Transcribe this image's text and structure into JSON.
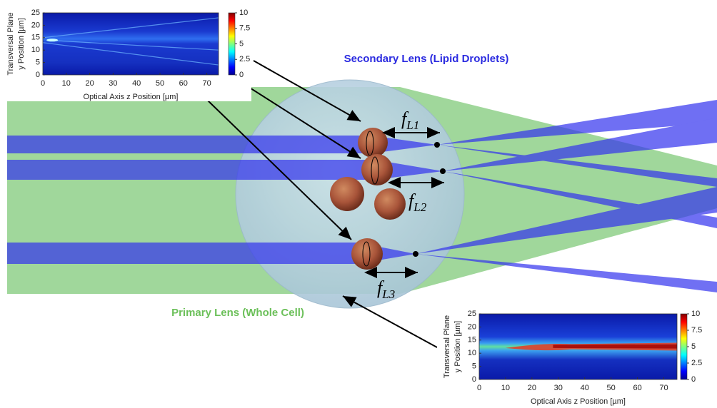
{
  "titles": {
    "secondary_lens": "Secondary Lens (Lipid Droplets)",
    "primary_lens": "Primary Lens (Whole Cell)"
  },
  "focal_labels": [
    {
      "symbol": "f",
      "subscript": "L1"
    },
    {
      "symbol": "f",
      "subscript": "L2"
    },
    {
      "symbol": "f",
      "subscript": "L3"
    }
  ],
  "insets": [
    {
      "x_label": "Optical Axis z Position [µm]",
      "y_label": [
        "Transversal Plane",
        "y Position [µm]"
      ],
      "xlim": [
        0,
        75
      ],
      "xticks": [
        0,
        10,
        20,
        30,
        40,
        50,
        60,
        70
      ],
      "ylim": [
        0,
        25
      ],
      "yticks": [
        0,
        5,
        10,
        15,
        20,
        25
      ],
      "clim": [
        0,
        10
      ],
      "cticks": [
        0,
        2.5,
        5,
        7.5,
        10
      ]
    },
    {
      "x_label": "Optical Axis z Position [µm]",
      "y_label": [
        "Transversal Plane",
        "y Position [µm]"
      ],
      "xlim": [
        0,
        75
      ],
      "xticks": [
        0,
        10,
        20,
        30,
        40,
        50,
        60,
        70
      ],
      "ylim": [
        0,
        25
      ],
      "yticks": [
        0,
        5,
        10,
        15,
        20,
        25
      ],
      "clim": [
        0,
        10
      ],
      "cticks": [
        0,
        2.5,
        5,
        7.5,
        10
      ]
    }
  ]
}
